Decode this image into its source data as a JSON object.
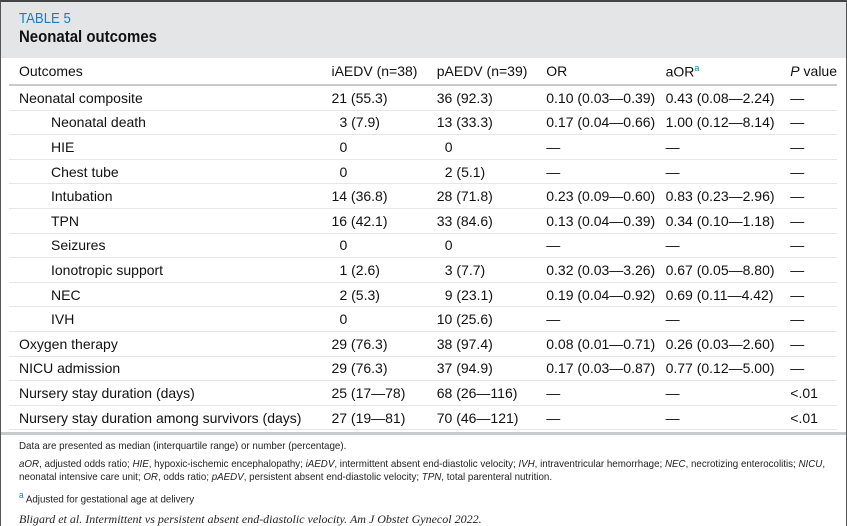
{
  "header": {
    "label": "TABLE 5",
    "title": "Neonatal outcomes"
  },
  "columns": {
    "outcomes": "Outcomes",
    "iaedv": "iAEDV (n=38)",
    "paedv": "pAEDV (n=39)",
    "or": "OR",
    "aor": "aOR",
    "aor_sup": "a",
    "p_italic": "P",
    "p_rest": " value"
  },
  "rows": [
    {
      "label": "Neonatal composite",
      "indent": false,
      "iaedv": "21 (55.3)",
      "paedv": "36 (92.3)",
      "or": "0.10 (0.03—0.39)",
      "aor": "0.43 (0.08—2.24)",
      "p": "—"
    },
    {
      "label": "Neonatal death",
      "indent": true,
      "iaedv": "3 (7.9)",
      "paedv": "13 (33.3)",
      "or": "0.17 (0.04—0.66)",
      "aor": "1.00 (0.12—8.14)",
      "p": "—"
    },
    {
      "label": "HIE",
      "indent": true,
      "iaedv": "0",
      "paedv": "0",
      "or": "—",
      "aor": "—",
      "p": "—"
    },
    {
      "label": "Chest tube",
      "indent": true,
      "iaedv": "0",
      "paedv": "2 (5.1)",
      "or": "—",
      "aor": "—",
      "p": "—"
    },
    {
      "label": "Intubation",
      "indent": true,
      "iaedv": "14 (36.8)",
      "paedv": "28 (71.8)",
      "or": "0.23 (0.09—0.60)",
      "aor": "0.83 (0.23—2.96)",
      "p": "—"
    },
    {
      "label": "TPN",
      "indent": true,
      "iaedv": "16 (42.1)",
      "paedv": "33 (84.6)",
      "or": "0.13 (0.04—0.39)",
      "aor": "0.34 (0.10—1.18)",
      "p": "—"
    },
    {
      "label": "Seizures",
      "indent": true,
      "iaedv": "0",
      "paedv": "0",
      "or": "—",
      "aor": "—",
      "p": "—"
    },
    {
      "label": "Ionotropic support",
      "indent": true,
      "iaedv": "1 (2.6)",
      "paedv": "3 (7.7)",
      "or": "0.32 (0.03—3.26)",
      "aor": "0.67 (0.05—8.80)",
      "p": "—"
    },
    {
      "label": "NEC",
      "indent": true,
      "iaedv": "2 (5.3)",
      "paedv": "9 (23.1)",
      "or": "0.19 (0.04—0.92)",
      "aor": "0.69 (0.11—4.42)",
      "p": "—"
    },
    {
      "label": "IVH",
      "indent": true,
      "iaedv": "0",
      "paedv": "10 (25.6)",
      "or": "—",
      "aor": "—",
      "p": "—"
    },
    {
      "label": "Oxygen therapy",
      "indent": false,
      "iaedv": "29 (76.3)",
      "paedv": "38 (97.4)",
      "or": "0.08 (0.01—0.71)",
      "aor": "0.26 (0.03—2.60)",
      "p": "—"
    },
    {
      "label": "NICU admission",
      "indent": false,
      "iaedv": "29 (76.3)",
      "paedv": "37 (94.9)",
      "or": "0.17 (0.03—0.87)",
      "aor": "0.77 (0.12—5.00)",
      "p": "—"
    },
    {
      "label": "Nursery stay duration (days)",
      "indent": false,
      "iaedv": "25 (17—78)",
      "paedv": "68 (26—116)",
      "or": "—",
      "aor": "—",
      "p": "<.01"
    },
    {
      "label": "Nursery stay duration among survivors (days)",
      "indent": false,
      "iaedv": "27 (19—81)",
      "paedv": "70 (46—121)",
      "or": "—",
      "aor": "—",
      "p": "<.01"
    }
  ],
  "footer": {
    "note": "Data are presented as median (interquartile range) or number (percentage).",
    "abbreviations": [
      {
        "abbr": "aOR",
        "def": ", adjusted odds ratio; "
      },
      {
        "abbr": "HIE",
        "def": ", hypoxic-ischemic encephalopathy; "
      },
      {
        "abbr": "iAEDV",
        "def": ", intermittent absent end-diastolic velocity; "
      },
      {
        "abbr": "IVH",
        "def": ", intraventricular hemorrhage; "
      },
      {
        "abbr": "NEC",
        "def": ", necrotizing enterocolitis; "
      },
      {
        "abbr": "NICU",
        "def": ", neonatal intensive care unit; "
      },
      {
        "abbr": "OR",
        "def": ", odds ratio; "
      },
      {
        "abbr": "pAEDV",
        "def": ", persistent absent end-diastolic velocity; "
      },
      {
        "abbr": "TPN",
        "def": ", total parenteral nutrition."
      }
    ],
    "footnote_mark": "a",
    "footnote": " Adjusted for gestational age at delivery",
    "citation": "Bligard et al. Intermittent vs persistent absent end-diastolic velocity. Am J Obstet Gynecol 2022."
  }
}
